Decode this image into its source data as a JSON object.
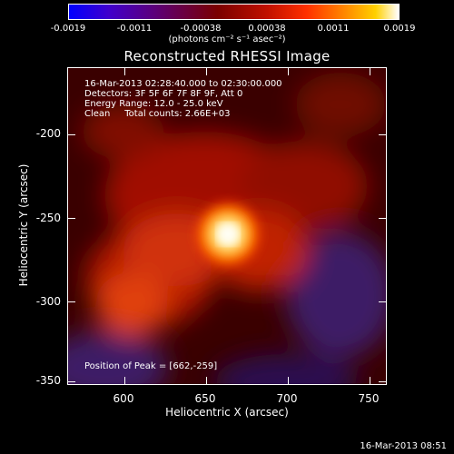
{
  "colorbar": {
    "ticks": [
      "-0.0019",
      "-0.0011",
      "-0.00038",
      "0.00038",
      "0.0011",
      "0.0019"
    ],
    "unit": "(photons cm⁻² s⁻¹ asec⁻²)"
  },
  "plot": {
    "title": "Reconstructed RHESSI Image",
    "info_lines": [
      "16-Mar-2013 02:28:40.000 to 02:30:00.000",
      "Detectors: 3F 5F 6F 7F 8F 9F, Att 0",
      "Energy Range: 12.0 - 25.0 keV",
      "Clean     Total counts: 2.66E+03"
    ],
    "peak_text": "Position of Peak = [662,-259]",
    "xlabel": "Heliocentric X (arcsec)",
    "ylabel": "Heliocentric Y (arcsec)",
    "xticks": [
      "600",
      "650",
      "700",
      "750"
    ],
    "yticks": [
      "-200",
      "-250",
      "-300",
      "-350"
    ]
  },
  "footer": {
    "timestamp": "16-Mar-2013 08:51"
  }
}
